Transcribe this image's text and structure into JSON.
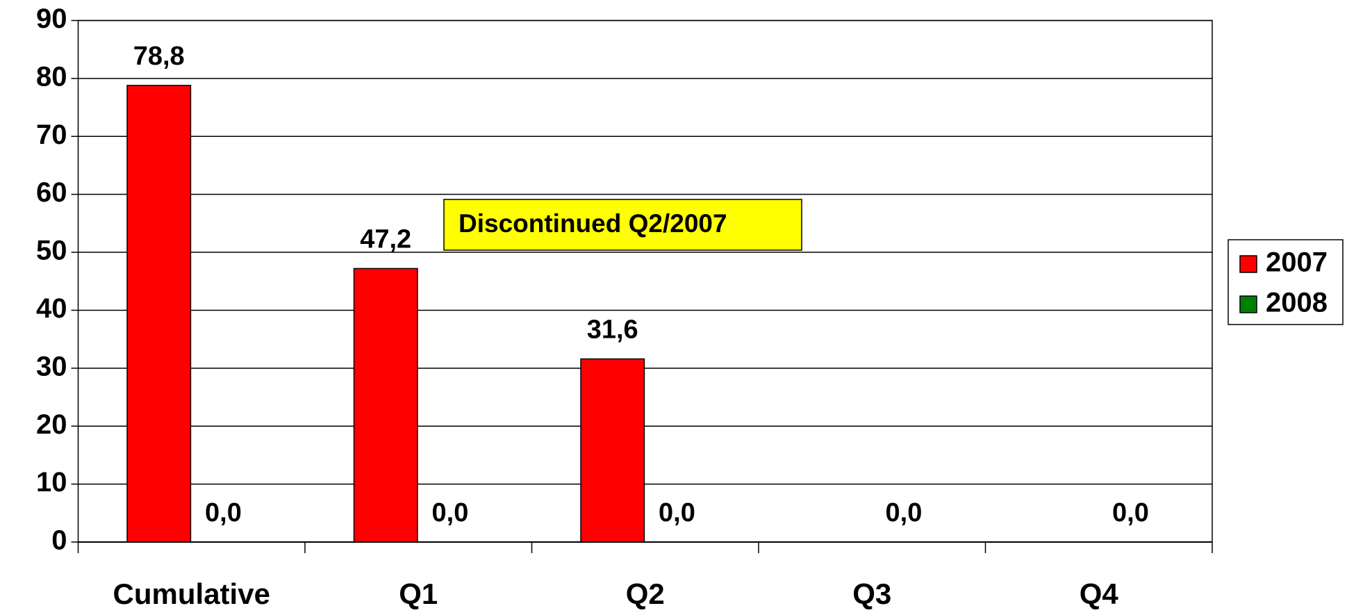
{
  "chart_data": {
    "type": "bar",
    "categories": [
      "Cumulative",
      "Q1",
      "Q2",
      "Q3",
      "Q4"
    ],
    "series": [
      {
        "name": "2007",
        "color": "#ff0000",
        "values": [
          78.8,
          47.2,
          31.6,
          null,
          null
        ],
        "value_labels": [
          "78,8",
          "47,2",
          "31,6",
          null,
          null
        ]
      },
      {
        "name": "2008",
        "color": "#008000",
        "values": [
          0,
          0,
          0,
          0,
          0
        ],
        "value_labels": [
          "0,0",
          "0,0",
          "0,0",
          "0,0",
          "0,0"
        ]
      }
    ],
    "annotation": "Discontinued Q2/2007",
    "annotation_color": "#ffff00",
    "ylim": [
      0,
      90
    ],
    "yticks": [
      0,
      10,
      20,
      30,
      40,
      50,
      60,
      70,
      80,
      90
    ],
    "grid": true,
    "legend": "right"
  }
}
